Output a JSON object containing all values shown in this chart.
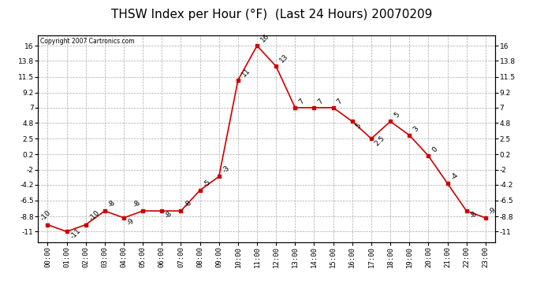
{
  "title": "THSW Index per Hour (°F)  (Last 24 Hours) 20070209",
  "copyright": "Copyright 2007 Cartronics.com",
  "hours": [
    "00:00",
    "01:00",
    "02:00",
    "03:00",
    "04:00",
    "05:00",
    "06:00",
    "07:00",
    "08:00",
    "09:00",
    "10:00",
    "11:00",
    "12:00",
    "13:00",
    "14:00",
    "15:00",
    "16:00",
    "17:00",
    "18:00",
    "19:00",
    "20:00",
    "21:00",
    "22:00",
    "23:00"
  ],
  "values": [
    -10,
    -11,
    -10,
    -8,
    -9,
    -8,
    -8,
    -8,
    -5,
    -3,
    11,
    16,
    13,
    7,
    7,
    7,
    5,
    2.5,
    5,
    3,
    0,
    -4,
    -8,
    -9
  ],
  "yticks": [
    -11.0,
    -8.8,
    -6.5,
    -4.2,
    -2.0,
    0.2,
    2.5,
    4.8,
    7.0,
    9.2,
    11.5,
    13.8,
    16.0
  ],
  "ylim": [
    -12.5,
    17.5
  ],
  "line_color": "#cc0000",
  "marker": "s",
  "marker_size": 3,
  "bg_color": "#ffffff",
  "plot_bg_color": "#ffffff",
  "grid_color": "#aaaaaa",
  "title_fontsize": 11,
  "label_fontsize": 6.5,
  "annot_fontsize": 6.5
}
